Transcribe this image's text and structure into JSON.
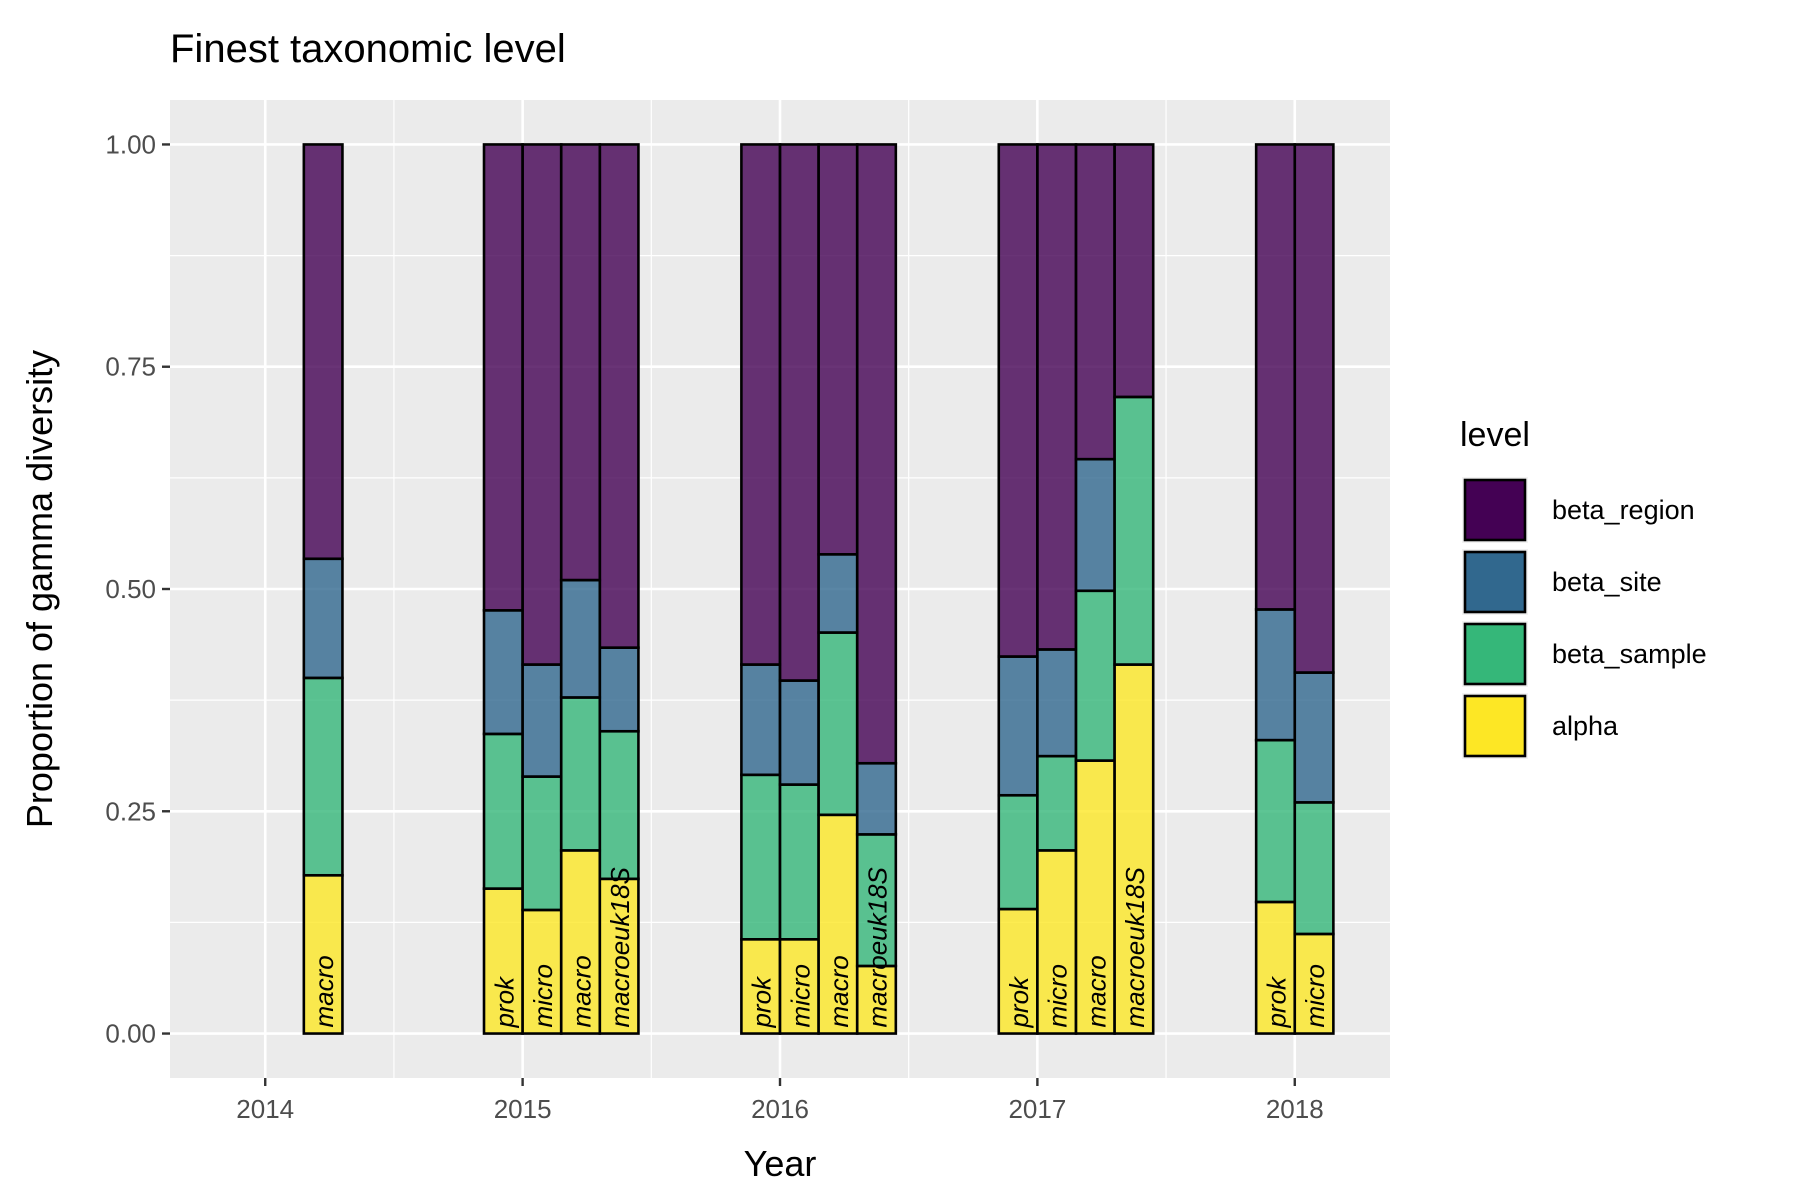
{
  "chart_data": {
    "type": "bar",
    "stacked": true,
    "title": "Finest taxonomic level",
    "xlabel": "Year",
    "ylabel": "Proportion of gamma diversity",
    "xlim": [
      2013.63,
      2018.37
    ],
    "ylim": [
      -0.05,
      1.05
    ],
    "x_ticks": [
      "2014",
      "2015",
      "2016",
      "2017",
      "2018"
    ],
    "y_ticks": [
      "0.00",
      "0.25",
      "0.50",
      "0.75",
      "1.00"
    ],
    "grid": true,
    "legend": {
      "title": "level",
      "position": "right",
      "entries": [
        {
          "name": "beta_region",
          "color": "#440154"
        },
        {
          "name": "beta_site",
          "color": "#31688E"
        },
        {
          "name": "beta_sample",
          "color": "#35B779"
        },
        {
          "name": "alpha",
          "color": "#FDE725"
        }
      ]
    },
    "stack_order": [
      "alpha",
      "beta_sample",
      "beta_site",
      "beta_region"
    ],
    "bars": [
      {
        "year": 2014,
        "x": 2014.225,
        "label": "macro",
        "alpha": 0.178,
        "beta_sample": 0.222,
        "beta_site": 0.134,
        "beta_region": 0.466
      },
      {
        "year": 2015,
        "x": 2014.925,
        "label": "prok",
        "alpha": 0.163,
        "beta_sample": 0.174,
        "beta_site": 0.139,
        "beta_region": 0.524
      },
      {
        "year": 2015,
        "x": 2015.075,
        "label": "micro",
        "alpha": 0.139,
        "beta_sample": 0.15,
        "beta_site": 0.126,
        "beta_region": 0.585
      },
      {
        "year": 2015,
        "x": 2015.225,
        "label": "macro",
        "alpha": 0.206,
        "beta_sample": 0.172,
        "beta_site": 0.132,
        "beta_region": 0.49
      },
      {
        "year": 2015,
        "x": 2015.375,
        "label": "macroeuk18S",
        "alpha": 0.174,
        "beta_sample": 0.166,
        "beta_site": 0.094,
        "beta_region": 0.566
      },
      {
        "year": 2016,
        "x": 2015.925,
        "label": "prok",
        "alpha": 0.106,
        "beta_sample": 0.185,
        "beta_site": 0.124,
        "beta_region": 0.585
      },
      {
        "year": 2016,
        "x": 2016.075,
        "label": "micro",
        "alpha": 0.106,
        "beta_sample": 0.174,
        "beta_site": 0.117,
        "beta_region": 0.603
      },
      {
        "year": 2016,
        "x": 2016.225,
        "label": "macro",
        "alpha": 0.246,
        "beta_sample": 0.205,
        "beta_site": 0.088,
        "beta_region": 0.461
      },
      {
        "year": 2016,
        "x": 2016.375,
        "label": "macroeuk18S",
        "alpha": 0.076,
        "beta_sample": 0.148,
        "beta_site": 0.08,
        "beta_region": 0.696
      },
      {
        "year": 2017,
        "x": 2016.925,
        "label": "prok",
        "alpha": 0.14,
        "beta_sample": 0.128,
        "beta_site": 0.156,
        "beta_region": 0.576
      },
      {
        "year": 2017,
        "x": 2017.075,
        "label": "micro",
        "alpha": 0.206,
        "beta_sample": 0.106,
        "beta_site": 0.12,
        "beta_region": 0.568
      },
      {
        "year": 2017,
        "x": 2017.225,
        "label": "macro",
        "alpha": 0.307,
        "beta_sample": 0.191,
        "beta_site": 0.148,
        "beta_region": 0.354
      },
      {
        "year": 2017,
        "x": 2017.375,
        "label": "macroeuk18S",
        "alpha": 0.415,
        "beta_sample": 0.301,
        "beta_site": 0.0,
        "beta_region": 0.284
      },
      {
        "year": 2018,
        "x": 2017.925,
        "label": "prok",
        "alpha": 0.148,
        "beta_sample": 0.182,
        "beta_site": 0.147,
        "beta_region": 0.523
      },
      {
        "year": 2018,
        "x": 2018.075,
        "label": "micro",
        "alpha": 0.112,
        "beta_sample": 0.148,
        "beta_site": 0.146,
        "beta_region": 0.594
      }
    ]
  }
}
